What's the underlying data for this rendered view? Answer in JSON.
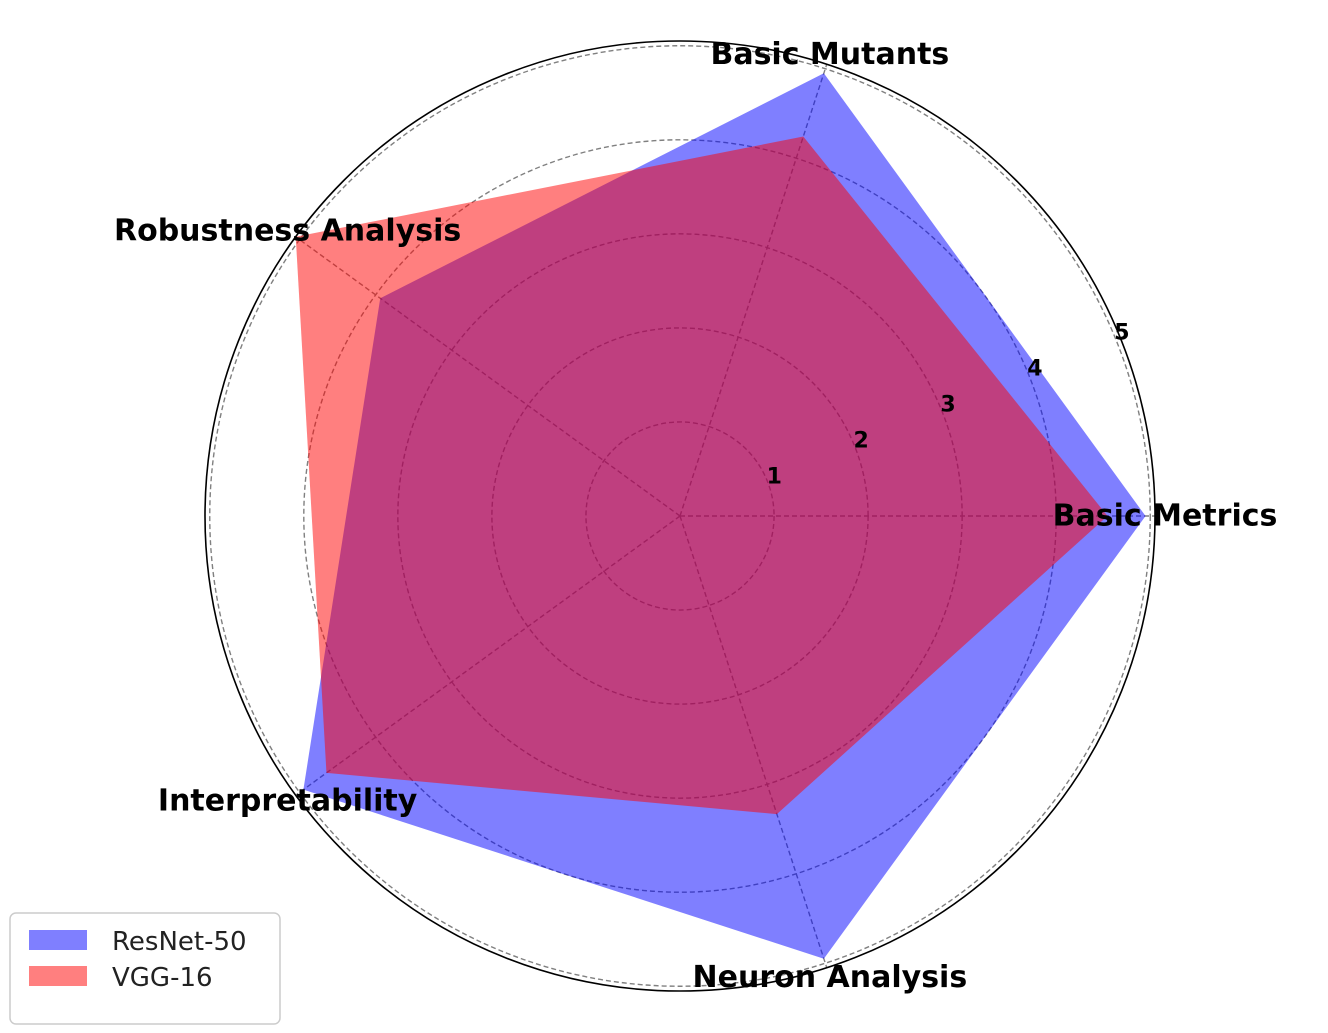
{
  "chart_data": {
    "type": "radar",
    "axes": [
      "Basic Metrics",
      "Basic Mutants",
      "Robustness Analysis",
      "Interpretability",
      "Neuron Analysis"
    ],
    "series": [
      {
        "name": "ResNet-50",
        "values": [
          4.9,
          4.9,
          3.9,
          4.9,
          4.9
        ],
        "color": "#0000ff",
        "opacity": 0.5
      },
      {
        "name": "VGG-16",
        "values": [
          4.5,
          4.2,
          5.0,
          4.6,
          3.3
        ],
        "color": "#ff0000",
        "opacity": 0.5
      }
    ],
    "radial_ticks": [
      "1",
      "2",
      "3",
      "4",
      "5"
    ],
    "rlim": [
      0,
      5
    ],
    "grid": true,
    "legend_placement": "lower-left"
  }
}
